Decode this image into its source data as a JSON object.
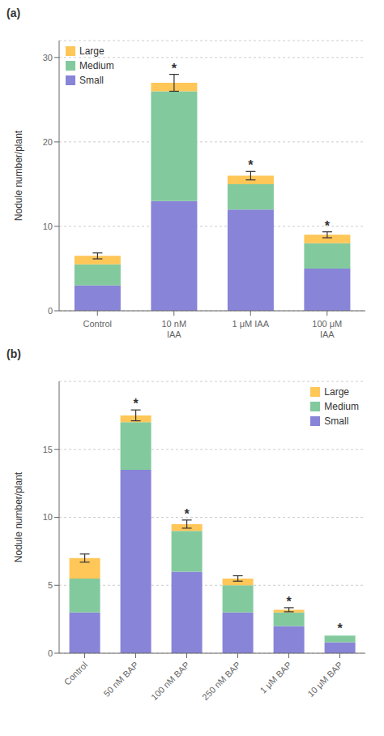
{
  "chart_data": [
    {
      "type": "bar",
      "title": "(a)",
      "stacked": true,
      "categories": [
        "Control",
        "10 nM\nIAA",
        "1 μM IAA",
        "100 μM\nIAA"
      ],
      "series": [
        {
          "name": "Small",
          "color": "#8884d8",
          "values": [
            3.0,
            13.0,
            12.0,
            5.0
          ]
        },
        {
          "name": "Medium",
          "color": "#82ca9d",
          "values": [
            2.5,
            13.0,
            3.0,
            3.0
          ]
        },
        {
          "name": "Large",
          "color": "#ffc658",
          "values": [
            1.0,
            1.0,
            1.0,
            1.0
          ]
        }
      ],
      "errors": [
        0.35,
        1.0,
        0.5,
        0.35
      ],
      "ylabel": "Nodule number/plant",
      "ylim": [
        0,
        32
      ],
      "yticks": [
        0,
        10,
        20,
        30
      ],
      "legend": "upper left",
      "annotations": [
        {
          "x": "10 nM\nIAA",
          "text": "*"
        },
        {
          "x": "1 μM IAA",
          "text": "*"
        },
        {
          "x": "100 μM\nIAA",
          "text": "*"
        }
      ]
    },
    {
      "type": "bar",
      "title": "(b)",
      "stacked": true,
      "categories": [
        "Control",
        "50 nM BAP",
        "100 nM BAP",
        "250 nM BAP",
        "1 μM BAP",
        "10 μM BAP"
      ],
      "series": [
        {
          "name": "Small",
          "color": "#8884d8",
          "values": [
            3.0,
            13.5,
            6.0,
            3.0,
            2.0,
            0.8
          ]
        },
        {
          "name": "Medium",
          "color": "#82ca9d",
          "values": [
            2.5,
            3.5,
            3.0,
            2.0,
            1.0,
            0.5
          ]
        },
        {
          "name": "Large",
          "color": "#ffc658",
          "values": [
            1.5,
            0.5,
            0.5,
            0.5,
            0.2,
            0.0
          ]
        }
      ],
      "errors": [
        0.3,
        0.4,
        0.3,
        0.2,
        0.15,
        0.1
      ],
      "ylabel": "Nodule number/plant",
      "ylim": [
        0,
        20
      ],
      "yticks": [
        0,
        5,
        10,
        15
      ],
      "legend": "upper right",
      "annotations": [
        {
          "x": "50 nM BAP",
          "text": "*"
        },
        {
          "x": "100 nM BAP",
          "text": "*"
        },
        {
          "x": "1 μM BAP",
          "text": "*"
        },
        {
          "x": "10 μM BAP",
          "text": "*"
        }
      ]
    }
  ]
}
